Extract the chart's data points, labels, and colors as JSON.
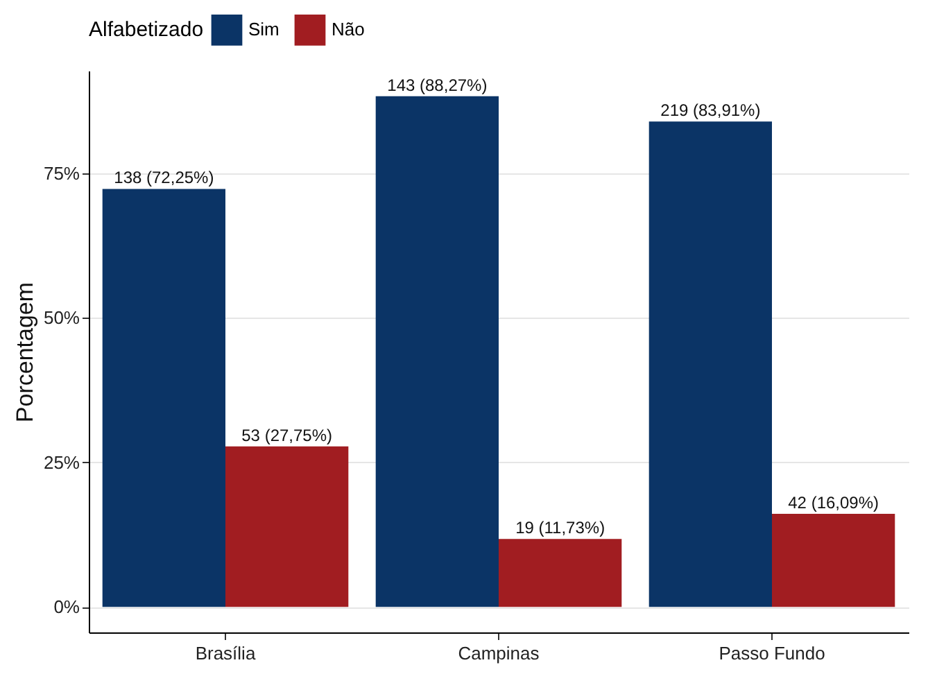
{
  "chart_data": {
    "type": "bar",
    "ylabel": "Porcentagem",
    "legend_title": "Alfabetizado",
    "legend": "top",
    "grid": "y",
    "categories": [
      "Brasília",
      "Campinas",
      "Passo Fundo"
    ],
    "ylim": [
      -4.41,
      92.68
    ],
    "yticks": [
      {
        "value": 0,
        "label": "0%"
      },
      {
        "value": 25,
        "label": "25%"
      },
      {
        "value": 50,
        "label": "50%"
      },
      {
        "value": 75,
        "label": "75%"
      }
    ],
    "series": [
      {
        "name": "Sim",
        "color": "#0b3466",
        "values": [
          72.25,
          88.27,
          83.91
        ],
        "value_labels": [
          "138 (72,25%)",
          "143 (88,27%)",
          "219 (83,91%)"
        ]
      },
      {
        "name": "Não",
        "color": "#a11d21",
        "values": [
          27.75,
          11.73,
          16.09
        ],
        "value_labels": [
          "53 (27,75%)",
          "19 (11,73%)",
          "42 (16,09%)"
        ]
      }
    ]
  }
}
